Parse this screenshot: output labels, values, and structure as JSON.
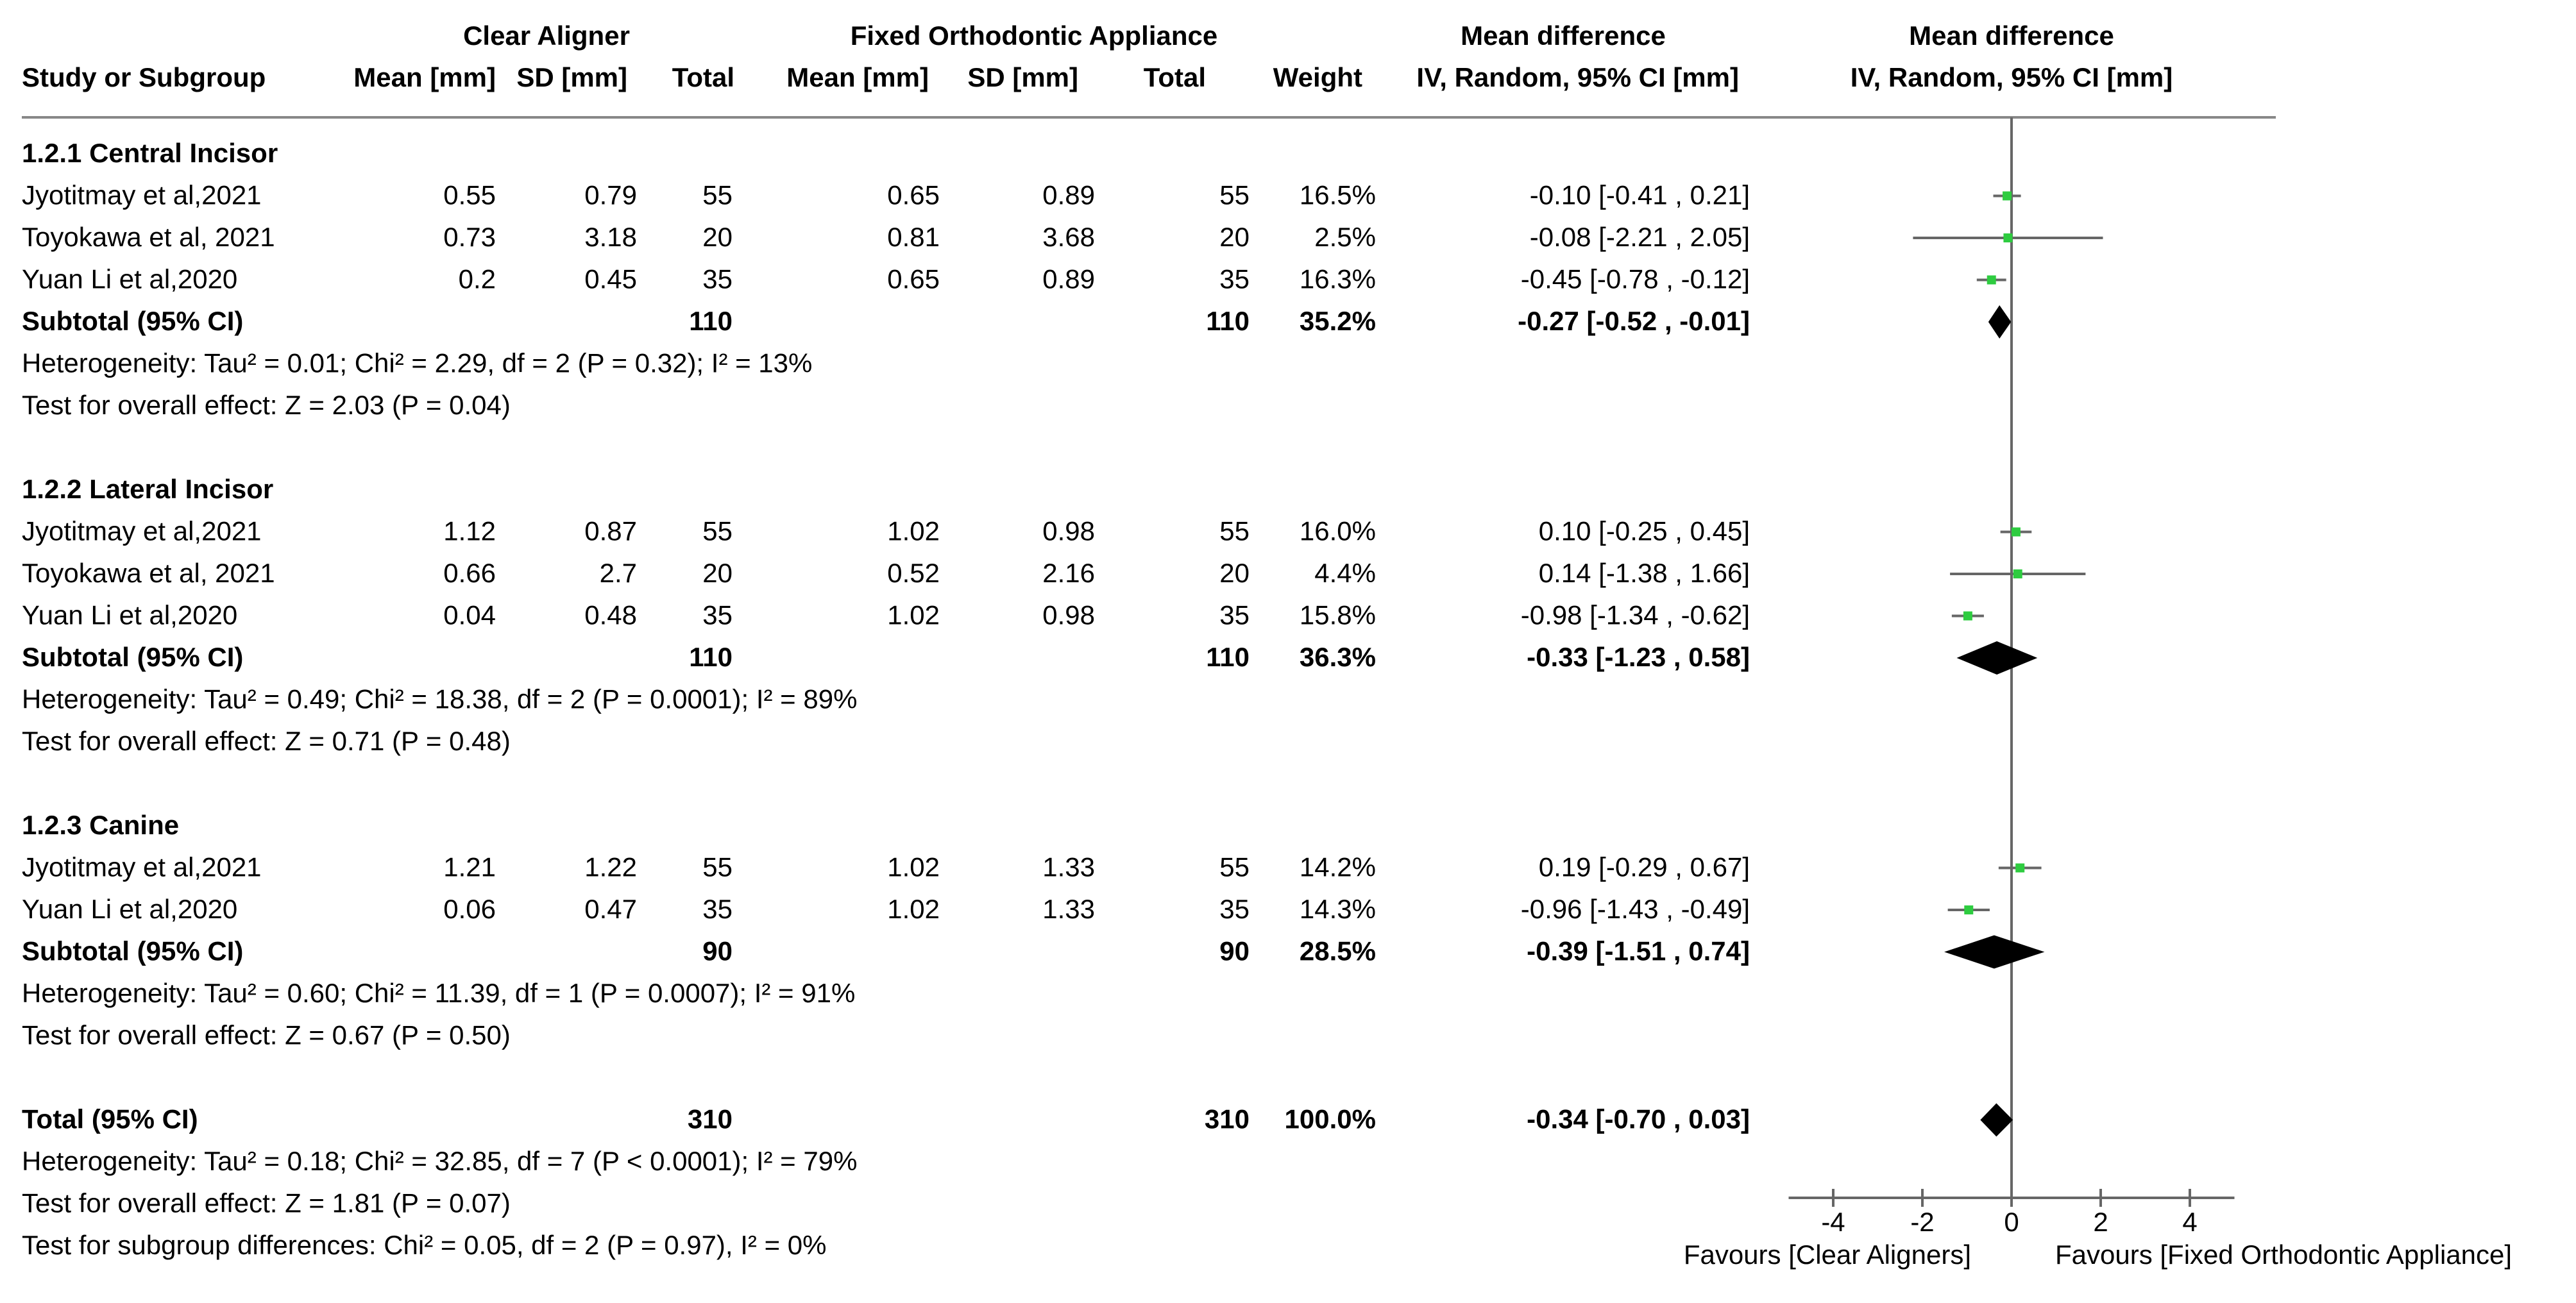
{
  "chart_data": {
    "type": "forest",
    "title": "",
    "headers": {
      "group1": "Clear Aligner",
      "group2": "Fixed Orthodontic Appliance",
      "study": "Study or Subgroup",
      "mean": "Mean [mm]",
      "sd": "SD [mm]",
      "total": "Total",
      "weight": "Weight",
      "effect_top": "Mean difference",
      "effect_bottom": "IV, Random, 95% CI [mm]",
      "plot_top": "Mean difference",
      "plot_bottom": "IV, Random, 95% CI [mm]"
    },
    "subgroups": [
      {
        "name": "1.2.1 Central Incisor",
        "studies": [
          {
            "study": "Jyotitmay et al,2021",
            "m1": "0.55",
            "sd1": "0.79",
            "n1": "55",
            "m2": "0.65",
            "sd2": "0.89",
            "n2": "55",
            "weight": "16.5%",
            "ci_text": "-0.10 [-0.41 , 0.21]",
            "md": -0.1,
            "lo": -0.41,
            "hi": 0.21
          },
          {
            "study": "Toyokawa et al, 2021",
            "m1": "0.73",
            "sd1": "3.18",
            "n1": "20",
            "m2": "0.81",
            "sd2": "3.68",
            "n2": "20",
            "weight": "2.5%",
            "ci_text": "-0.08 [-2.21 , 2.05]",
            "md": -0.08,
            "lo": -2.21,
            "hi": 2.05
          },
          {
            "study": "Yuan Li et al,2020",
            "m1": "0.2",
            "sd1": "0.45",
            "n1": "35",
            "m2": "0.65",
            "sd2": "0.89",
            "n2": "35",
            "weight": "16.3%",
            "ci_text": "-0.45 [-0.78 , -0.12]",
            "md": -0.45,
            "lo": -0.78,
            "hi": -0.12
          }
        ],
        "subtotal": {
          "label": "Subtotal (95% CI)",
          "n1": "110",
          "n2": "110",
          "weight": "35.2%",
          "ci_text": "-0.27 [-0.52 , -0.01]",
          "md": -0.27,
          "lo": -0.52,
          "hi": -0.01
        },
        "heterogeneity": "Heterogeneity: Tau² = 0.01; Chi² = 2.29, df = 2 (P = 0.32); I² = 13%",
        "overall": "Test for overall effect: Z = 2.03 (P = 0.04)"
      },
      {
        "name": "1.2.2 Lateral Incisor",
        "studies": [
          {
            "study": "Jyotitmay et al,2021",
            "m1": "1.12",
            "sd1": "0.87",
            "n1": "55",
            "m2": "1.02",
            "sd2": "0.98",
            "n2": "55",
            "weight": "16.0%",
            "ci_text": "0.10 [-0.25 , 0.45]",
            "md": 0.1,
            "lo": -0.25,
            "hi": 0.45
          },
          {
            "study": "Toyokawa et al, 2021",
            "m1": "0.66",
            "sd1": "2.7",
            "n1": "20",
            "m2": "0.52",
            "sd2": "2.16",
            "n2": "20",
            "weight": "4.4%",
            "ci_text": "0.14 [-1.38 , 1.66]",
            "md": 0.14,
            "lo": -1.38,
            "hi": 1.66
          },
          {
            "study": "Yuan Li et al,2020",
            "m1": "0.04",
            "sd1": "0.48",
            "n1": "35",
            "m2": "1.02",
            "sd2": "0.98",
            "n2": "35",
            "weight": "15.8%",
            "ci_text": "-0.98 [-1.34 , -0.62]",
            "md": -0.98,
            "lo": -1.34,
            "hi": -0.62
          }
        ],
        "subtotal": {
          "label": "Subtotal (95% CI)",
          "n1": "110",
          "n2": "110",
          "weight": "36.3%",
          "ci_text": "-0.33 [-1.23 , 0.58]",
          "md": -0.33,
          "lo": -1.23,
          "hi": 0.58
        },
        "heterogeneity": "Heterogeneity: Tau² = 0.49; Chi² = 18.38, df = 2 (P = 0.0001); I² = 89%",
        "overall": "Test for overall effect: Z = 0.71 (P = 0.48)"
      },
      {
        "name": "1.2.3 Canine",
        "studies": [
          {
            "study": "Jyotitmay et al,2021",
            "m1": "1.21",
            "sd1": "1.22",
            "n1": "55",
            "m2": "1.02",
            "sd2": "1.33",
            "n2": "55",
            "weight": "14.2%",
            "ci_text": "0.19 [-0.29 , 0.67]",
            "md": 0.19,
            "lo": -0.29,
            "hi": 0.67
          },
          {
            "study": "Yuan Li et al,2020",
            "m1": "0.06",
            "sd1": "0.47",
            "n1": "35",
            "m2": "1.02",
            "sd2": "1.33",
            "n2": "35",
            "weight": "14.3%",
            "ci_text": "-0.96 [-1.43 , -0.49]",
            "md": -0.96,
            "lo": -1.43,
            "hi": -0.49
          }
        ],
        "subtotal": {
          "label": "Subtotal (95% CI)",
          "n1": "90",
          "n2": "90",
          "weight": "28.5%",
          "ci_text": "-0.39 [-1.51 , 0.74]",
          "md": -0.39,
          "lo": -1.51,
          "hi": 0.74
        },
        "heterogeneity": "Heterogeneity: Tau² = 0.60; Chi² = 11.39, df = 1 (P = 0.0007); I² = 91%",
        "overall": "Test for overall effect: Z = 0.67 (P = 0.50)"
      }
    ],
    "total": {
      "label": "Total (95% CI)",
      "n1": "310",
      "n2": "310",
      "weight": "100.0%",
      "ci_text": "-0.34 [-0.70 , 0.03]",
      "md": -0.34,
      "lo": -0.7,
      "hi": 0.03
    },
    "footer": [
      "Heterogeneity: Tau² = 0.18; Chi² = 32.85, df = 7 (P < 0.0001); I² = 79%",
      "Test for overall effect: Z = 1.81 (P = 0.07)",
      "Test for subgroup differences: Chi² = 0.05, df = 2 (P = 0.97), I² = 0%"
    ],
    "xaxis": {
      "range": [
        -5,
        5
      ],
      "ticks": [
        -4,
        -2,
        0,
        2,
        4
      ],
      "tick_labels": [
        "-4",
        "-2",
        "0",
        "2",
        "4"
      ]
    },
    "favours_left": "Favours [Clear Aligners]",
    "favours_right": "Favours [Fixed Orthodontic Appliance]",
    "colors": {
      "study_marker": "#2ecc40",
      "diamond": "#000000",
      "line": "#666666"
    }
  }
}
